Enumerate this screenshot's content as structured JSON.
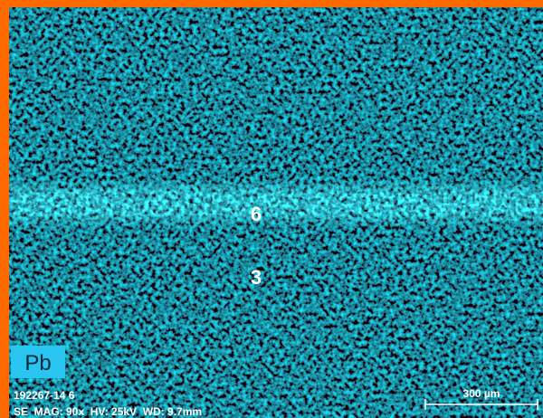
{
  "map": {
    "element": "Pb",
    "markers": [
      "6",
      "3"
    ],
    "info": {
      "sample": "192267-14 6",
      "parameters": "SE  MAG: 90x  HV: 25kV  WD: 9.7mm"
    },
    "scale_bar": "300 µm"
  }
}
